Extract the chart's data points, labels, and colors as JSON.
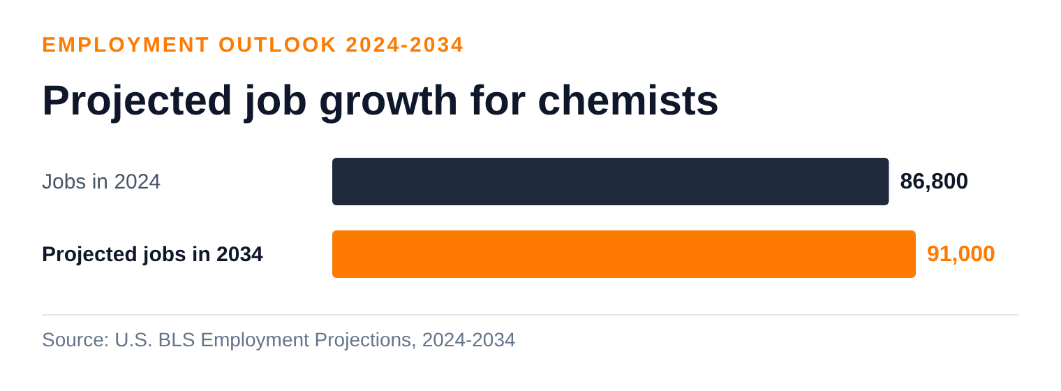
{
  "chart_data": {
    "type": "bar",
    "orientation": "horizontal",
    "subtitle": "EMPLOYMENT OUTLOOK 2024-2034",
    "title": "Projected job growth for chemists",
    "categories": [
      "Jobs in 2024",
      "Projected jobs in 2034"
    ],
    "values": [
      86800,
      91000
    ],
    "colors": [
      "#1e293b",
      "#ff7a00"
    ],
    "value_labels": [
      "86,800",
      "91,000"
    ],
    "annotations": [
      "Source: U.S. BLS Employment Projections, 2024-2034"
    ],
    "grid": false,
    "legend": false
  }
}
